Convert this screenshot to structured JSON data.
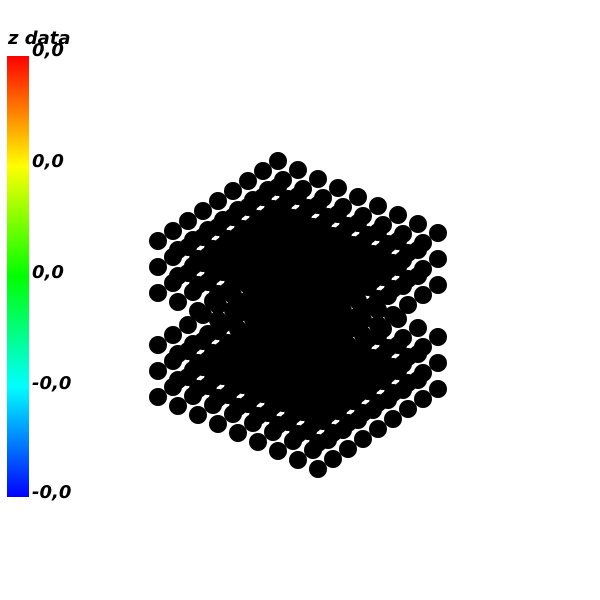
{
  "colors": {
    "point": "#000000",
    "background": "#ffffff",
    "colormap": [
      "#0000ff",
      "#00ffff",
      "#00ff00",
      "#ffff00",
      "#ff0000"
    ]
  },
  "colorbar": {
    "title": "z data",
    "ticks": [
      "0,0",
      "0,0",
      "0,0",
      "-0,0",
      "-0,0"
    ]
  },
  "chart_data": {
    "type": "scatter",
    "dimension": "3d",
    "title": "",
    "xlabel": "",
    "ylabel": "",
    "zlabel": "",
    "grid": false,
    "colorbar": {
      "title": "z data",
      "position": "left",
      "tick_labels": [
        "0,0",
        "0,0",
        "0,0",
        "-0,0",
        "-0,0"
      ]
    },
    "series": [
      {
        "grid_x": [
          -4,
          -3,
          -2,
          -1,
          0,
          1,
          2,
          3,
          4
        ],
        "grid_y": [
          -4,
          -3,
          -2,
          -1,
          0,
          1,
          2,
          3,
          4
        ],
        "grid_z": [
          -3,
          -2,
          -1,
          1,
          2,
          3
        ],
        "marker": "sphere",
        "color": "#000000"
      }
    ]
  }
}
